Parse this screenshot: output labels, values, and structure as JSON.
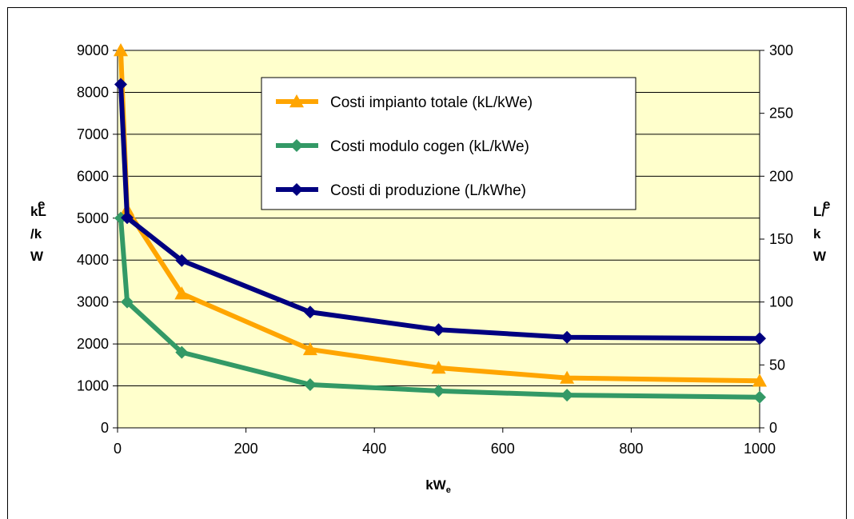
{
  "chart_data": {
    "type": "line",
    "x": [
      5,
      15,
      100,
      300,
      500,
      700,
      1000
    ],
    "series": [
      {
        "name": "Costi impianto totale (kL/kWe)",
        "axis": "left",
        "color": "#FFA500",
        "marker": "triangle",
        "values": [
          9000,
          5200,
          3200,
          1870,
          1430,
          1190,
          1120
        ]
      },
      {
        "name": "Costi modulo cogen (kL/kWe)",
        "axis": "left",
        "color": "#339966",
        "marker": "diamond",
        "values": [
          5000,
          3000,
          1800,
          1030,
          880,
          780,
          730
        ]
      },
      {
        "name": "Costi di produzione (L/kWhe)",
        "axis": "right",
        "color": "#000080",
        "marker": "diamond",
        "values": [
          273,
          167,
          133,
          92,
          78,
          72,
          71
        ]
      }
    ],
    "xlim": [
      0,
      1000
    ],
    "ylim_left": [
      0,
      9000
    ],
    "ylim_right": [
      0,
      300
    ],
    "xticks": [
      "0",
      "200",
      "400",
      "600",
      "800",
      "1000"
    ],
    "yticks_left": [
      "0",
      "1000",
      "2000",
      "3000",
      "4000",
      "5000",
      "6000",
      "7000",
      "8000",
      "9000"
    ],
    "yticks_right": [
      "0",
      "50",
      "100",
      "150",
      "200",
      "250",
      "300"
    ],
    "xlabel_main": "kW",
    "xlabel_sub": "e",
    "ylabel_left_lines": [
      "kL",
      "/k",
      "W"
    ],
    "ylabel_left_sup": "e",
    "ylabel_right_lines": [
      "L/",
      "k",
      "W"
    ],
    "ylabel_right_sup": "e",
    "grid": true,
    "plot_background": "#FFFFCC",
    "legend_position": "top-center"
  }
}
